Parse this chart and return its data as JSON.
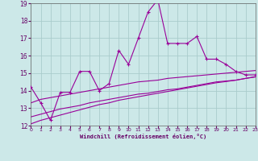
{
  "xlabel": "Windchill (Refroidissement éolien,°C)",
  "x": [
    0,
    1,
    2,
    3,
    4,
    5,
    6,
    7,
    8,
    9,
    10,
    11,
    12,
    13,
    14,
    15,
    16,
    17,
    18,
    19,
    20,
    21,
    22,
    23
  ],
  "y_main": [
    14.2,
    13.3,
    12.3,
    13.9,
    13.9,
    15.1,
    15.1,
    14.0,
    14.4,
    16.3,
    15.5,
    17.0,
    18.5,
    19.2,
    16.7,
    16.7,
    16.7,
    17.1,
    15.8,
    15.8,
    15.5,
    15.1,
    14.9,
    14.9
  ],
  "y_trend1": [
    13.3,
    13.5,
    13.6,
    13.7,
    13.8,
    13.9,
    14.0,
    14.1,
    14.2,
    14.3,
    14.4,
    14.5,
    14.55,
    14.6,
    14.7,
    14.75,
    14.8,
    14.85,
    14.9,
    14.95,
    15.0,
    15.05,
    15.1,
    15.15
  ],
  "y_trend2": [
    12.5,
    12.65,
    12.8,
    12.95,
    13.05,
    13.15,
    13.3,
    13.4,
    13.5,
    13.6,
    13.7,
    13.8,
    13.85,
    13.95,
    14.05,
    14.1,
    14.2,
    14.3,
    14.4,
    14.5,
    14.55,
    14.6,
    14.7,
    14.8
  ],
  "y_trend3": [
    12.1,
    12.3,
    12.45,
    12.6,
    12.75,
    12.9,
    13.05,
    13.2,
    13.3,
    13.45,
    13.55,
    13.65,
    13.75,
    13.85,
    13.95,
    14.05,
    14.15,
    14.25,
    14.35,
    14.45,
    14.52,
    14.6,
    14.7,
    14.78
  ],
  "line_color": "#990099",
  "bg_color": "#cce8e8",
  "grid_color": "#aacccc",
  "ylim": [
    12,
    19
  ],
  "xlim": [
    0,
    23
  ],
  "yticks": [
    12,
    13,
    14,
    15,
    16,
    17,
    18,
    19
  ],
  "xticks": [
    0,
    1,
    2,
    3,
    4,
    5,
    6,
    7,
    8,
    9,
    10,
    11,
    12,
    13,
    14,
    15,
    16,
    17,
    18,
    19,
    20,
    21,
    22,
    23
  ],
  "tick_color": "#660066",
  "label_color": "#660066"
}
